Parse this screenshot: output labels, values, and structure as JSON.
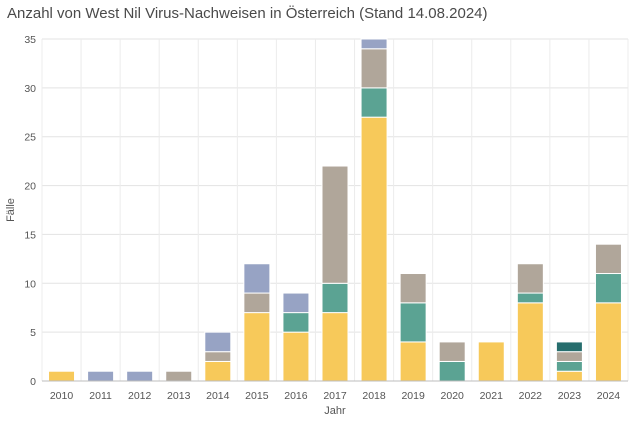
{
  "chart_data": {
    "type": "bar",
    "stacked": true,
    "title": "Anzahl von West Nil Virus-Nachweisen in Österreich (Stand 14.08.2024)",
    "xlabel": "Jahr",
    "ylabel": "Fälle",
    "ylim": [
      0,
      35
    ],
    "yticks": [
      0,
      5,
      10,
      15,
      20,
      25,
      30,
      35
    ],
    "grid": true,
    "categories": [
      "2010",
      "2011",
      "2012",
      "2013",
      "2014",
      "2015",
      "2016",
      "2017",
      "2018",
      "2019",
      "2020",
      "2021",
      "2022",
      "2023",
      "2024"
    ],
    "series": [
      {
        "color": "#f7c95a",
        "values": [
          1,
          0,
          0,
          0,
          2,
          7,
          5,
          7,
          27,
          4,
          0,
          4,
          8,
          1,
          8
        ]
      },
      {
        "color": "#5ba393",
        "values": [
          0,
          0,
          0,
          0,
          0,
          0,
          2,
          3,
          3,
          4,
          2,
          0,
          1,
          1,
          3
        ]
      },
      {
        "color": "#b0a69a",
        "values": [
          0,
          0,
          0,
          1,
          1,
          2,
          0,
          12,
          4,
          3,
          2,
          0,
          3,
          1,
          3
        ]
      },
      {
        "color": "#97a3c4",
        "values": [
          0,
          1,
          1,
          0,
          2,
          3,
          2,
          0,
          1,
          0,
          0,
          0,
          0,
          0,
          0
        ]
      },
      {
        "color": "#276e6e",
        "values": [
          0,
          0,
          0,
          0,
          0,
          0,
          0,
          0,
          0,
          0,
          0,
          0,
          0,
          1,
          0
        ]
      }
    ]
  }
}
